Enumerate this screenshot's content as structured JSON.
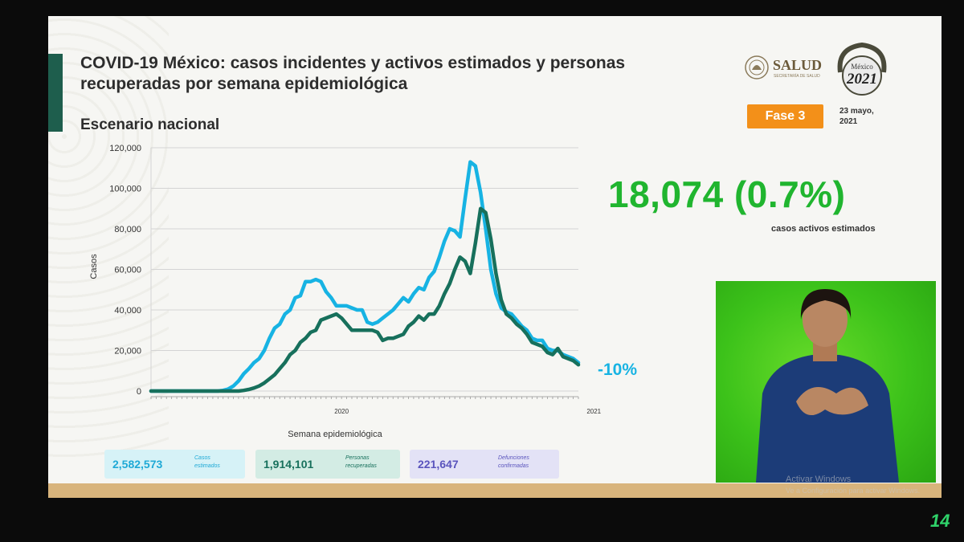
{
  "header": {
    "title": "COVID-19 México: casos incidentes y activos estimados y personas recuperadas por semana epidemiológica",
    "subtitle": "Escenario nacional"
  },
  "logos": {
    "salud": "SALUD",
    "salud_sub": "SECRETARÍA DE SALUD",
    "year_logo": "2021",
    "year_logo_top": "México"
  },
  "badge": {
    "fase": "Fase 3",
    "date": "23 mayo, 2021"
  },
  "highlight": {
    "value": "18,074 (0.7%)",
    "label": "casos activos estimados"
  },
  "stats": {
    "casos": {
      "value": "2,582,573",
      "label": "Casos estimados"
    },
    "recuperadas": {
      "value": "1,914,101",
      "label": "Personas recuperadas"
    },
    "defunciones": {
      "value": "221,647",
      "label": "Defunciones confirmadas"
    }
  },
  "overlay": {
    "windows_line1": "Activar Windows",
    "windows_line2": "Ve a Configuración para activar Windows.",
    "channel": "14"
  },
  "colors": {
    "incident": "#17b3e3",
    "recovered": "#17705c",
    "accent": "#20b52f",
    "badge": "#f39019"
  },
  "chart_data": {
    "type": "line",
    "xlabel": "Semana epidemiológica",
    "ylabel": "Casos",
    "ylim": [
      0,
      120000
    ],
    "yticks": [
      "0",
      "20,000",
      "40,000",
      "60,000",
      "80,000",
      "100,000",
      "120,000"
    ],
    "year_labels": [
      {
        "label": "2020",
        "week_index": 37
      },
      {
        "label": "2021",
        "week_index": 86
      }
    ],
    "annotation": "-10%",
    "grid": true,
    "series": [
      {
        "values": [
          0,
          0,
          0,
          0,
          0,
          0,
          0,
          0,
          0,
          0,
          0,
          0,
          0,
          0,
          300,
          1000,
          2500,
          5000,
          8500,
          11000,
          14000,
          16000,
          20000,
          26000,
          31000,
          33000,
          38000,
          40000,
          46000,
          47000,
          54000,
          54000,
          55000,
          54000,
          49000,
          46000,
          42000,
          42000,
          42000,
          41000,
          40000,
          40000,
          34000,
          33000,
          34000,
          36000,
          38000,
          40000,
          43000,
          46000,
          44000,
          48000,
          51000,
          50000,
          56000,
          59000,
          66000,
          74000,
          80000,
          79000,
          76000,
          95000,
          113000,
          111000,
          98000,
          80000,
          60000,
          48000,
          41000,
          39000,
          38000,
          35000,
          32000,
          30000,
          26000,
          25000,
          25000,
          21000,
          20000,
          20000,
          18000,
          17000,
          16000,
          14000
        ]
      },
      {
        "values": [
          0,
          0,
          0,
          0,
          0,
          0,
          0,
          0,
          0,
          0,
          0,
          0,
          0,
          0,
          0,
          0,
          0,
          0,
          300,
          800,
          1500,
          2500,
          4000,
          6000,
          8000,
          11000,
          14000,
          18000,
          20000,
          24000,
          26000,
          29000,
          30000,
          35000,
          36000,
          37000,
          38000,
          36000,
          33000,
          30000,
          30000,
          30000,
          30000,
          30000,
          29000,
          25000,
          26000,
          26000,
          27000,
          28000,
          32000,
          34000,
          37000,
          35000,
          38000,
          38000,
          42000,
          48000,
          53000,
          60000,
          66000,
          64000,
          58000,
          73000,
          90000,
          88000,
          75000,
          58000,
          45000,
          38000,
          36000,
          33000,
          31000,
          28000,
          24000,
          23000,
          22000,
          19000,
          18000,
          21000,
          17000,
          16000,
          15000,
          13000
        ]
      }
    ]
  }
}
